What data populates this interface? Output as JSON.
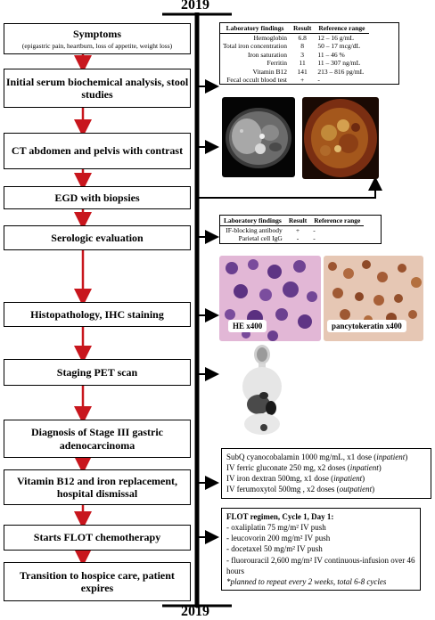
{
  "timeline": {
    "year_start": "2019",
    "year_end": "2019"
  },
  "steps": [
    {
      "title": "Symptoms",
      "subtitle": "(epigastric pain, heartburn, loss of appetite, weight loss)"
    },
    {
      "title": "Initial serum biochemical analysis, stool studies"
    },
    {
      "title": "CT abdomen and pelvis with contrast"
    },
    {
      "title": "EGD with biopsies"
    },
    {
      "title": "Serologic evaluation"
    },
    {
      "title": "Histopathology, IHC staining"
    },
    {
      "title": "Staging PET scan"
    },
    {
      "title": "Diagnosis of Stage III gastric adenocarcinoma"
    },
    {
      "title": "Vitamin B12 and iron replacement, hospital dismissal"
    },
    {
      "title": "Starts FLOT chemotherapy"
    },
    {
      "title": "Transition to hospice care, patient expires"
    }
  ],
  "lab_table_1": {
    "headers": [
      "Laboratory findings",
      "Result",
      "Reference range"
    ],
    "rows": [
      [
        "Hemoglobin",
        "6.8",
        "12 – 16 g/mL"
      ],
      [
        "Total iron concentration",
        "8",
        "50 – 17 mcg/dL"
      ],
      [
        "Iron saturation",
        "3",
        "11 – 46 %"
      ],
      [
        "Ferritin",
        "11",
        "11 – 307 ng/mL"
      ],
      [
        "Vitamin B12",
        "141",
        "213 – 816 pg/mL"
      ],
      [
        "Fecal occult blood test",
        "+",
        "-"
      ]
    ]
  },
  "lab_table_2": {
    "headers": [
      "Laboratory findings",
      "Result",
      "Reference range"
    ],
    "rows": [
      [
        "IF-blocking antibody",
        "+",
        "-"
      ],
      [
        "Parietal cell IgG",
        "-",
        "-"
      ]
    ]
  },
  "images": {
    "he_label": "HE x400",
    "ck_label": "pancytokeratin x400"
  },
  "replacement_note": [
    {
      "text": "SubQ cyanocobalamin  1000 mg/mL, x1 dose (",
      "em": "inpatient",
      "tail": ")"
    },
    {
      "text": "IV ferric  gluconate 250 mg, x2 doses (",
      "em": "inpatient",
      "tail": ")"
    },
    {
      "text": "IV iron dextran 500mg, x1 dose (",
      "em": "inpatient",
      "tail": ")"
    },
    {
      "text": "IV ferumoxytol 500mg , x2 doses (",
      "em": "outpatient",
      "tail": ")"
    }
  ],
  "flot_note": {
    "heading": "FLOT regimen, Cycle 1, Day 1:",
    "lines": [
      "- oxaliplatin 75 mg/m² IV push",
      "- leucovorin 200 mg/m² IV push",
      "- docetaxel  50 mg/m² IV push",
      "- fluorouracil 2,600 mg/m²  IV continuous-infusion over 46  hours"
    ],
    "footnote": "*planned to repeat every  2 weeks, total 6-8 cycles"
  }
}
